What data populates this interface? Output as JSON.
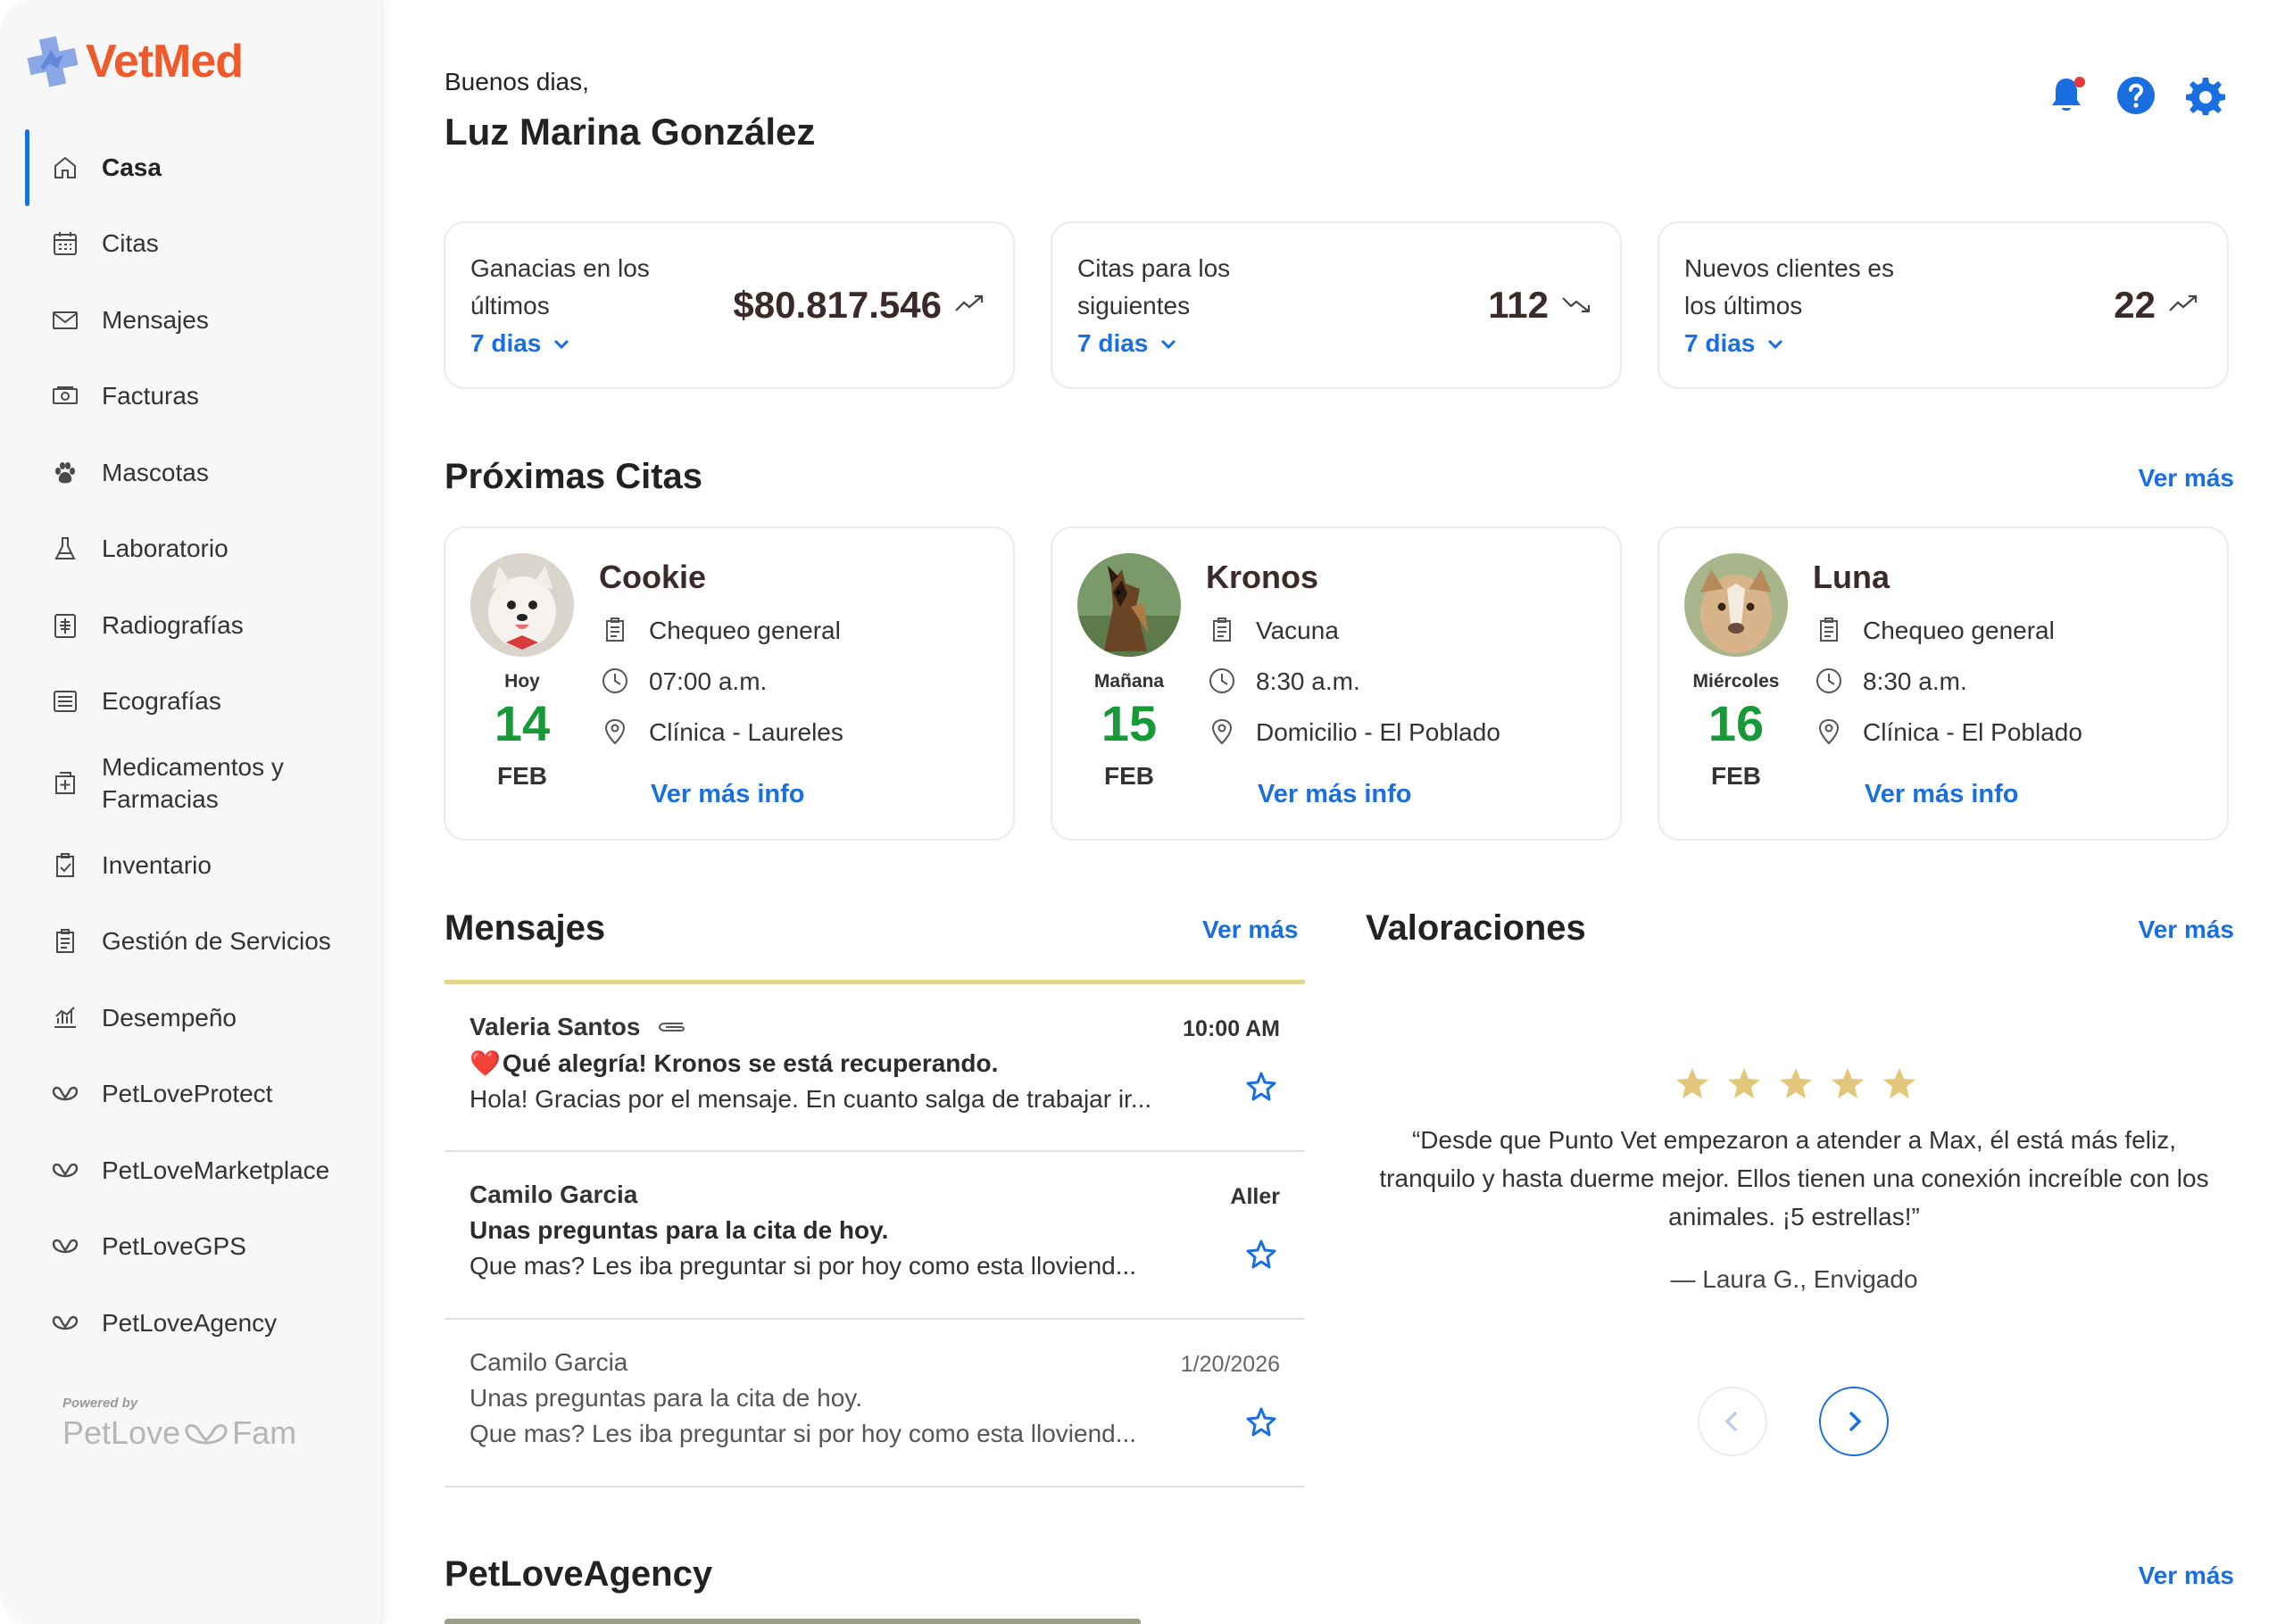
{
  "brand": {
    "name": "VetMed",
    "color": "#f05a2a"
  },
  "sidebar": {
    "items": [
      {
        "label": "Casa",
        "icon": "home-icon",
        "active": true
      },
      {
        "label": "Citas",
        "icon": "calendar-icon"
      },
      {
        "label": "Mensajes",
        "icon": "mail-icon"
      },
      {
        "label": "Facturas",
        "icon": "invoice-icon"
      },
      {
        "label": "Mascotas",
        "icon": "paw-icon"
      },
      {
        "label": "Laboratorio",
        "icon": "flask-icon"
      },
      {
        "label": "Radiografías",
        "icon": "xray-icon"
      },
      {
        "label": "Ecografías",
        "icon": "ultrasound-icon"
      },
      {
        "label": "Medicamentos y Farmacias",
        "icon": "pharmacy-icon"
      },
      {
        "label": "Inventario",
        "icon": "inventory-icon"
      },
      {
        "label": "Gestión de Servicios",
        "icon": "clipboard-icon"
      },
      {
        "label": "Desempeño",
        "icon": "performance-icon"
      },
      {
        "label": "PetLoveProtect",
        "icon": "petlove-icon"
      },
      {
        "label": "PetLoveMarketplace",
        "icon": "petlove-icon"
      },
      {
        "label": "PetLoveGPS",
        "icon": "petlove-icon"
      },
      {
        "label": "PetLoveAgency",
        "icon": "petlove-icon"
      }
    ],
    "powered_by": "Powered by",
    "powered_logo_left": "PetLove",
    "powered_logo_right": "Fam"
  },
  "header": {
    "greeting": "Buenos dias,",
    "user_name": "Luz Marina González",
    "icons": [
      "bell-icon",
      "help-icon",
      "gear-icon"
    ],
    "accent": "#1a6fe0"
  },
  "stats": [
    {
      "label": "Ganacias en los últimos",
      "period": "7 dias",
      "value": "$80.817.546",
      "trend": "up"
    },
    {
      "label": "Citas para los siguientes",
      "period": "7 dias",
      "value": "112",
      "trend": "down"
    },
    {
      "label": "Nuevos clientes es los últimos",
      "period": "7 dias",
      "value": "22",
      "trend": "up"
    }
  ],
  "appointments_section": {
    "title": "Próximas Citas",
    "see_more": "Ver más",
    "items": [
      {
        "pet": "Cookie",
        "day": "Hoy",
        "date": "14",
        "month": "FEB",
        "type": "Chequeo general",
        "time": "07:00 a.m.",
        "place": "Clínica - Laureles",
        "link": "Ver más info"
      },
      {
        "pet": "Kronos",
        "day": "Mañana",
        "date": "15",
        "month": "FEB",
        "type": "Vacuna",
        "time": "8:30 a.m.",
        "place": "Domicilio - El Poblado",
        "link": "Ver más info"
      },
      {
        "pet": "Luna",
        "day": "Miércoles",
        "date": "16",
        "month": "FEB",
        "type": "Chequeo general",
        "time": "8:30 a.m.",
        "place": "Clínica - El Poblado",
        "link": "Ver más info"
      }
    ]
  },
  "messages_section": {
    "title": "Mensajes",
    "see_more": "Ver más",
    "items": [
      {
        "sender": "Valeria Santos",
        "attachment": true,
        "time": "10:00 AM",
        "heart": "❤️",
        "subject": "Qué alegría! Kronos se está recuperando.",
        "preview": "Hola! Gracias por el mensaje. En cuanto salga de trabajar ir...",
        "read": false
      },
      {
        "sender": "Camilo Garcia",
        "attachment": false,
        "time": "Aller",
        "heart": "",
        "subject": "Unas preguntas para la cita de hoy.",
        "preview": "Que mas? Les iba preguntar si por hoy como esta lloviend...",
        "read": false
      },
      {
        "sender": "Camilo Garcia",
        "attachment": false,
        "time": "1/20/2026",
        "heart": "",
        "subject": "Unas preguntas para la cita de hoy.",
        "preview": "Que mas? Les iba preguntar si por hoy como esta lloviend...",
        "read": true
      }
    ]
  },
  "reviews_section": {
    "title": "Valoraciones",
    "see_more": "Ver más",
    "rating": 5,
    "star_color": "#e2c77a",
    "text": "“Desde que Punto Vet empezaron a atender a Max, él está más feliz, tranquilo y hasta duerme mejor. Ellos tienen una conexión increíble con los animales. ¡5 estrellas!”",
    "author": "— Laura G., Envigado"
  },
  "agency_section": {
    "title": "PetLoveAgency",
    "see_more": "Ver más"
  }
}
